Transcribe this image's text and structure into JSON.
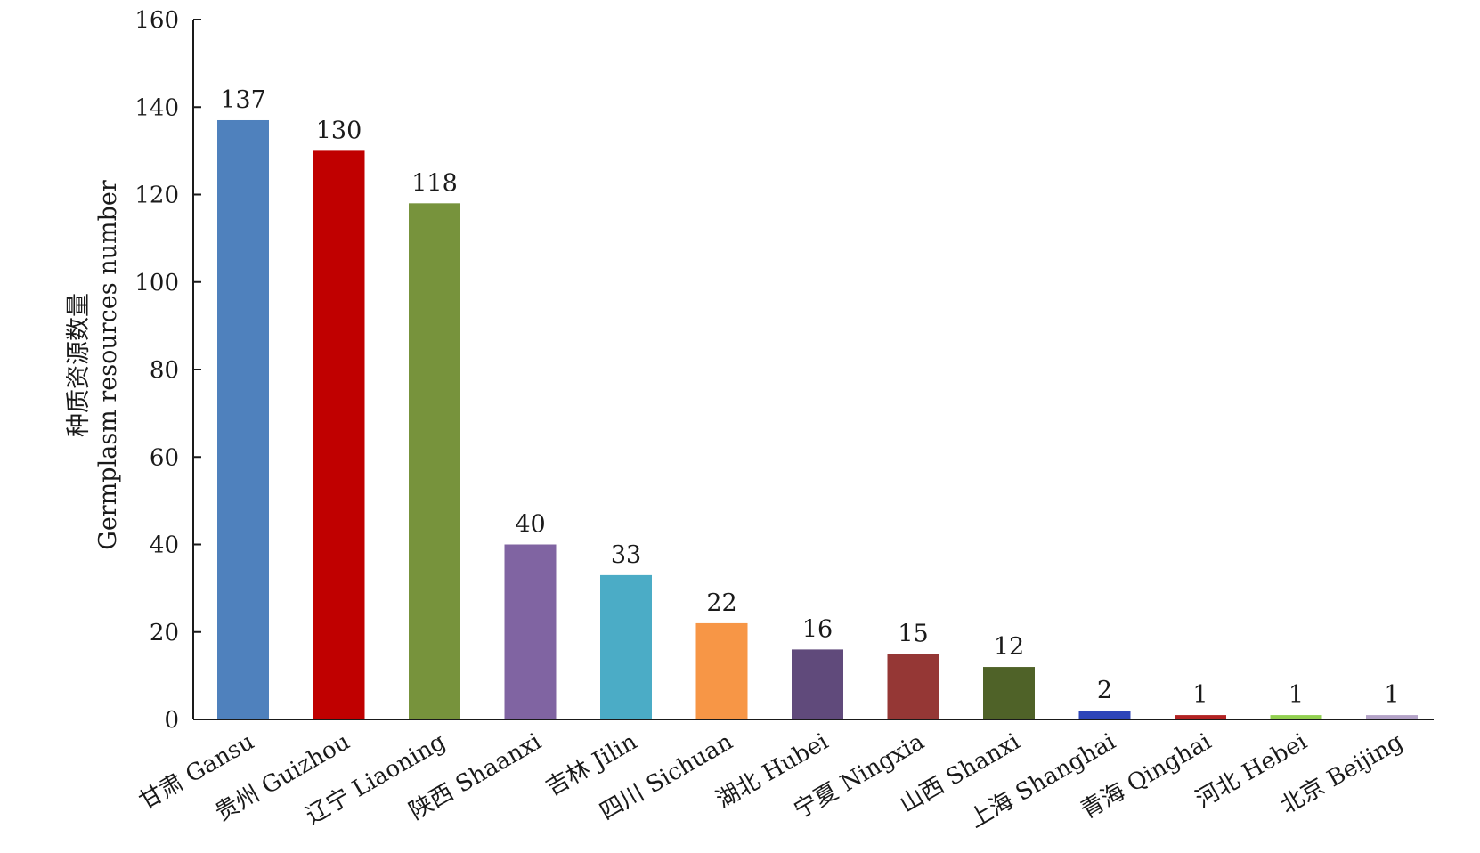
{
  "chart_data": {
    "type": "bar",
    "title": "",
    "xlabel": "",
    "ylabel": [
      "种质资源数量",
      "Germplasm resources number"
    ],
    "ylim": [
      0,
      160
    ],
    "yticks": [
      "0",
      "20",
      "40",
      "60",
      "80",
      "100",
      "120",
      "140",
      "160"
    ],
    "grid": false,
    "legend": "none",
    "categories": [
      "甘肃 Gansu",
      "贵州 Guizhou",
      "辽宁 Liaoning",
      "陕西 Shaanxi",
      "吉林 Jilin",
      "四川 Sichuan",
      "湖北 Hubei",
      "宁夏 Ningxia",
      "山西 Shanxi",
      "上海 Shanghai",
      "青海 Qinghai",
      "河北 Hebei",
      "北京 Beijing"
    ],
    "values": [
      137,
      130,
      118,
      40,
      33,
      22,
      16,
      15,
      12,
      2,
      1,
      1,
      1
    ],
    "value_labels": [
      "137",
      "130",
      "118",
      "40",
      "33",
      "22",
      "16",
      "15",
      "12",
      "2",
      "1",
      "1",
      "1"
    ],
    "colors": [
      "#4f81bd",
      "#c00000",
      "#77933c",
      "#8064a2",
      "#4bacc6",
      "#f79646",
      "#604a7b",
      "#953735",
      "#4f6228",
      "#2e45b8",
      "#b22222",
      "#92d050",
      "#b3a2c7"
    ]
  }
}
